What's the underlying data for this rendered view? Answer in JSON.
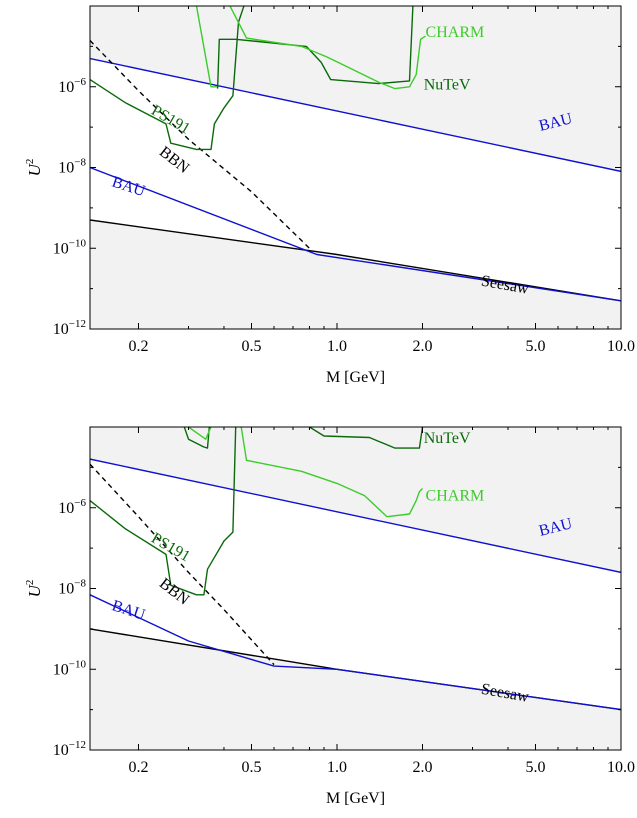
{
  "chart_data": [
    {
      "type": "line",
      "xlabel": "M [GeV]",
      "ylabel": "U",
      "ylabel_sup": "2",
      "xscale": "log",
      "yscale": "log",
      "xlim": [
        0.135,
        10
      ],
      "ylim": [
        1e-12,
        0.0001
      ],
      "x_ticks": [
        {
          "value": 0.2,
          "label": "0.2"
        },
        {
          "value": 0.5,
          "label": "0.5"
        },
        {
          "value": 1.0,
          "label": "1.0"
        },
        {
          "value": 2.0,
          "label": "2.0"
        },
        {
          "value": 5.0,
          "label": "5.0"
        },
        {
          "value": 10.0,
          "label": "10.0"
        }
      ],
      "y_ticks": [
        {
          "value": 1e-06,
          "base": "10",
          "exp": "−6"
        },
        {
          "value": 1e-08,
          "base": "10",
          "exp": "−8"
        },
        {
          "value": 1e-10,
          "base": "10",
          "exp": "−10"
        },
        {
          "value": 1e-12,
          "base": "10",
          "exp": "−12"
        }
      ],
      "colors": {
        "blue": "#1010d0",
        "black": "#000000",
        "dark_green": "#0a6a0a",
        "light_green": "#3ccc2a",
        "fill": "#f2f2f2"
      },
      "series": [
        {
          "name": "Seesaw",
          "color": "black",
          "points": [
            [
              0.135,
              5e-10
            ],
            [
              1.0,
              7e-11
            ],
            [
              10.0,
              5e-12
            ]
          ]
        },
        {
          "name": "BAU",
          "color": "blue",
          "points": [
            [
              0.135,
              1e-08
            ],
            [
              0.85,
              7e-11
            ],
            [
              10.0,
              5e-12
            ]
          ]
        },
        {
          "name": "BAU",
          "color": "blue",
          "points": [
            [
              0.135,
              5e-06
            ],
            [
              10.0,
              8e-09
            ]
          ]
        },
        {
          "name": "BBN",
          "color": "black",
          "dashed": true,
          "points": [
            [
              0.135,
              1.4e-05
            ],
            [
              0.2,
              8e-07
            ],
            [
              0.3,
              5e-08
            ],
            [
              0.5,
              2.5e-09
            ],
            [
              0.8,
              1e-10
            ]
          ]
        },
        {
          "name": "PS191",
          "color": "dark_green",
          "points": [
            [
              0.135,
              1.5e-06
            ],
            [
              0.18,
              4e-07
            ],
            [
              0.25,
              1.2e-07
            ],
            [
              0.26,
              4e-08
            ],
            [
              0.32,
              2.8e-08
            ],
            [
              0.36,
              2.8e-08
            ],
            [
              0.37,
              1.2e-07
            ],
            [
              0.4,
              3e-07
            ],
            [
              0.43,
              6e-07
            ],
            [
              0.45,
              4e-05
            ],
            [
              0.47,
              0.0001
            ]
          ]
        },
        {
          "name": "",
          "color": "light_green",
          "points": [
            [
              0.32,
              0.0001
            ],
            [
              0.36,
              1e-06
            ],
            [
              0.38,
              1e-06
            ]
          ]
        },
        {
          "name": "",
          "color": "dark_green",
          "points": [
            [
              0.38,
              9e-07
            ],
            [
              0.385,
              1.5e-05
            ],
            [
              0.44,
              1.5e-05
            ],
            [
              0.78,
              1e-05
            ],
            [
              0.88,
              4e-06
            ],
            [
              0.95,
              1.5e-06
            ],
            [
              1.4,
              1.2e-06
            ],
            [
              1.8,
              1.4e-06
            ],
            [
              1.85,
              0.0001
            ]
          ]
        },
        {
          "name": "CHARM",
          "color": "light_green",
          "points": [
            [
              0.42,
              0.0001
            ],
            [
              0.48,
              1.6e-05
            ],
            [
              0.75,
              1e-05
            ],
            [
              0.92,
              5.5e-06
            ],
            [
              1.05,
              3.5e-06
            ],
            [
              1.4,
              1.3e-06
            ],
            [
              1.6,
              9e-07
            ],
            [
              1.8,
              1e-06
            ],
            [
              1.9,
              2e-06
            ],
            [
              1.97,
              1.5e-05
            ],
            [
              2.05,
              1.8e-05
            ]
          ]
        }
      ],
      "fills": [
        {
          "color": "fill",
          "points": [
            [
              0.135,
              5e-10
            ],
            [
              1.0,
              7e-11
            ],
            [
              10.0,
              5e-12
            ],
            [
              10.0,
              1e-12
            ],
            [
              0.135,
              1e-12
            ]
          ]
        },
        {
          "color": "fill",
          "points": [
            [
              0.135,
              5e-06
            ],
            [
              10.0,
              8e-09
            ],
            [
              10.0,
              0.0001
            ],
            [
              0.135,
              0.0001
            ]
          ]
        }
      ],
      "labels": [
        {
          "text": "CHARM",
          "x": 2.05,
          "y": 1.7e-05,
          "color": "light_green",
          "angle": 0
        },
        {
          "text": "NuTeV",
          "x": 2.02,
          "y": 8.5e-07,
          "color": "dark_green",
          "angle": 0
        },
        {
          "text": "PS191",
          "x": 0.22,
          "y": 2.2e-07,
          "color": "dark_green",
          "angle": 30
        },
        {
          "text": "BBN",
          "x": 0.235,
          "y": 2.2e-08,
          "color": "black",
          "angle": 38
        },
        {
          "text": "BAU",
          "x": 5.2,
          "y": 8e-08,
          "color": "blue",
          "angle": -14
        },
        {
          "text": "BAU",
          "x": 0.16,
          "y": 3.5e-09,
          "color": "blue",
          "angle": 18
        },
        {
          "text": "Seesaw",
          "x": 3.2,
          "y": 1.2e-11,
          "color": "black",
          "angle": 10
        }
      ]
    },
    {
      "type": "line",
      "xlabel": "M [GeV]",
      "ylabel": "U",
      "ylabel_sup": "2",
      "xscale": "log",
      "yscale": "log",
      "xlim": [
        0.135,
        10
      ],
      "ylim": [
        1e-12,
        0.0001
      ],
      "x_ticks": [
        {
          "value": 0.2,
          "label": "0.2"
        },
        {
          "value": 0.5,
          "label": "0.5"
        },
        {
          "value": 1.0,
          "label": "1.0"
        },
        {
          "value": 2.0,
          "label": "2.0"
        },
        {
          "value": 5.0,
          "label": "5.0"
        },
        {
          "value": 10.0,
          "label": "10.0"
        }
      ],
      "y_ticks": [
        {
          "value": 1e-06,
          "base": "10",
          "exp": "−6"
        },
        {
          "value": 1e-08,
          "base": "10",
          "exp": "−8"
        },
        {
          "value": 1e-10,
          "base": "10",
          "exp": "−10"
        },
        {
          "value": 1e-12,
          "base": "10",
          "exp": "−12"
        }
      ],
      "colors": {
        "blue": "#1010d0",
        "black": "#000000",
        "dark_green": "#0a6a0a",
        "light_green": "#3ccc2a",
        "fill": "#f2f2f2"
      },
      "series": [
        {
          "name": "Seesaw",
          "color": "black",
          "points": [
            [
              0.135,
              1e-09
            ],
            [
              1.0,
              1e-10
            ],
            [
              10.0,
              1e-11
            ]
          ]
        },
        {
          "name": "BAU",
          "color": "blue",
          "points": [
            [
              0.135,
              7e-09
            ],
            [
              0.3,
              5e-10
            ],
            [
              0.6,
              1.2e-10
            ],
            [
              1.0,
              1e-10
            ],
            [
              10.0,
              1e-11
            ]
          ]
        },
        {
          "name": "BAU",
          "color": "blue",
          "points": [
            [
              0.135,
              1.6e-05
            ],
            [
              10.0,
              2.5e-08
            ]
          ]
        },
        {
          "name": "BBN",
          "color": "black",
          "dashed": true,
          "points": [
            [
              0.135,
              1.2e-05
            ],
            [
              0.2,
              6e-07
            ],
            [
              0.3,
              2.5e-08
            ],
            [
              0.4,
              3e-09
            ],
            [
              0.6,
              1.3e-10
            ]
          ]
        },
        {
          "name": "PS191",
          "color": "dark_green",
          "points": [
            [
              0.135,
              1.5e-06
            ],
            [
              0.18,
              3e-07
            ],
            [
              0.25,
              7e-08
            ],
            [
              0.26,
              1.2e-08
            ],
            [
              0.32,
              7e-09
            ],
            [
              0.34,
              7e-09
            ],
            [
              0.35,
              3e-08
            ],
            [
              0.4,
              1.5e-07
            ],
            [
              0.43,
              2.5e-07
            ],
            [
              0.44,
              0.0001
            ]
          ]
        },
        {
          "name": "",
          "color": "dark_green",
          "points": [
            [
              0.29,
              0.0001
            ],
            [
              0.3,
              5e-05
            ],
            [
              0.34,
              3.2e-05
            ],
            [
              0.35,
              3e-05
            ],
            [
              0.355,
              0.0001
            ]
          ]
        },
        {
          "name": "",
          "color": "light_green",
          "points": [
            [
              0.3,
              0.0001
            ],
            [
              0.345,
              5e-05
            ],
            [
              0.36,
              0.0001
            ]
          ]
        },
        {
          "name": "NuTeV",
          "color": "dark_green",
          "points": [
            [
              0.8,
              0.0001
            ],
            [
              0.9,
              6e-05
            ],
            [
              1.3,
              5.5e-05
            ],
            [
              1.6,
              3e-05
            ],
            [
              1.95,
              3e-05
            ],
            [
              2.0,
              0.0001
            ]
          ]
        },
        {
          "name": "CHARM",
          "color": "light_green",
          "points": [
            [
              0.46,
              0.0001
            ],
            [
              0.48,
              1.5e-05
            ],
            [
              0.75,
              8e-06
            ],
            [
              1.0,
              4e-06
            ],
            [
              1.25,
              2e-06
            ],
            [
              1.5,
              6e-07
            ],
            [
              1.8,
              7e-07
            ],
            [
              1.9,
              1.5e-06
            ],
            [
              1.95,
              2.5e-06
            ],
            [
              2.0,
              3e-06
            ]
          ]
        }
      ],
      "fills": [
        {
          "color": "fill",
          "points": [
            [
              0.135,
              1e-09
            ],
            [
              1.0,
              1e-10
            ],
            [
              10.0,
              1e-11
            ],
            [
              10.0,
              1e-12
            ],
            [
              0.135,
              1e-12
            ]
          ]
        },
        {
          "color": "fill",
          "points": [
            [
              0.135,
              1.6e-05
            ],
            [
              10.0,
              2.5e-08
            ],
            [
              10.0,
              0.0001
            ],
            [
              0.135,
              0.0001
            ]
          ]
        }
      ],
      "labels": [
        {
          "text": "NuTeV",
          "x": 2.02,
          "y": 4e-05,
          "color": "dark_green",
          "angle": 0
        },
        {
          "text": "CHARM",
          "x": 2.05,
          "y": 1.5e-06,
          "color": "light_green",
          "angle": 0
        },
        {
          "text": "PS191",
          "x": 0.22,
          "y": 1.5e-07,
          "color": "dark_green",
          "angle": 30
        },
        {
          "text": "BBN",
          "x": 0.235,
          "y": 1.2e-08,
          "color": "black",
          "angle": 38
        },
        {
          "text": "BAU",
          "x": 5.2,
          "y": 2e-07,
          "color": "blue",
          "angle": -14
        },
        {
          "text": "BAU",
          "x": 0.16,
          "y": 3e-09,
          "color": "blue",
          "angle": 18
        },
        {
          "text": "Seesaw",
          "x": 3.2,
          "y": 2.5e-11,
          "color": "black",
          "angle": 10
        }
      ]
    }
  ]
}
